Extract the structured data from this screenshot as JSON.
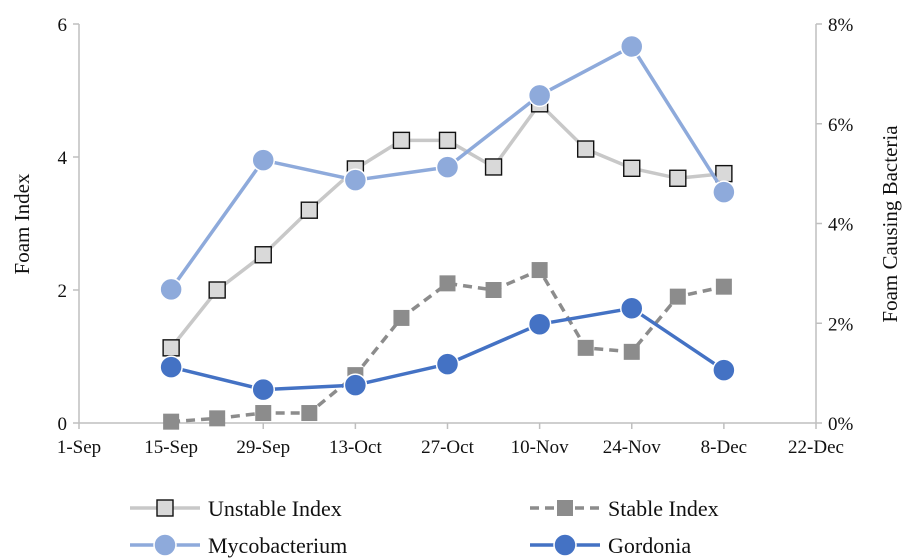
{
  "chart_data": {
    "type": "line",
    "title": "",
    "xlabel": "",
    "ylabel_left": "Foam Index",
    "ylabel_right": "Foam Causing Bacteria",
    "x_ticks": [
      "1-Sep",
      "15-Sep",
      "29-Sep",
      "13-Oct",
      "27-Oct",
      "10-Nov",
      "24-Nov",
      "8-Dec",
      "22-Dec"
    ],
    "x_tick_days": [
      0,
      14,
      28,
      42,
      56,
      70,
      84,
      98,
      112
    ],
    "ylim_left": [
      0,
      6
    ],
    "y_ticks_left": [
      "0",
      "2",
      "4",
      "6"
    ],
    "ylim_right": [
      0,
      0.08
    ],
    "y_ticks_right": [
      "0%",
      "2%",
      "4%",
      "6%",
      "8%"
    ],
    "grid": false,
    "legend_position": "bottom",
    "series": [
      {
        "name": "Unstable Index",
        "axis": "left",
        "color": "#c8c8c8",
        "marker": "square-open",
        "line": "solid",
        "x": [
          14,
          21,
          28,
          35,
          42,
          49,
          56,
          63,
          70,
          77,
          84,
          91,
          98
        ],
        "values": [
          1.13,
          2.0,
          2.53,
          3.2,
          3.82,
          4.25,
          4.25,
          3.85,
          4.8,
          4.12,
          3.83,
          3.68,
          3.75
        ]
      },
      {
        "name": "Stable Index",
        "axis": "left",
        "color": "#8c8c8c",
        "marker": "square-filled",
        "line": "dashed",
        "x": [
          14,
          21,
          28,
          35,
          42,
          49,
          56,
          63,
          70,
          77,
          84,
          91,
          98
        ],
        "values": [
          0.02,
          0.07,
          0.15,
          0.15,
          0.72,
          1.58,
          2.1,
          2.0,
          2.3,
          1.13,
          1.07,
          1.9,
          2.05
        ]
      },
      {
        "name": "Mycobacterium",
        "axis": "right",
        "color": "#8eaadb",
        "marker": "circle",
        "line": "solid",
        "x": [
          14,
          28,
          42,
          56,
          70,
          84,
          98
        ],
        "values": [
          0.0268,
          0.0527,
          0.0487,
          0.0513,
          0.0657,
          0.0755,
          0.0463
        ]
      },
      {
        "name": "Gordonia",
        "axis": "right",
        "color": "#4472c4",
        "marker": "circle",
        "line": "solid",
        "x": [
          14,
          28,
          42,
          56,
          70,
          84,
          98
        ],
        "values": [
          0.0112,
          0.0067,
          0.0076,
          0.0118,
          0.0198,
          0.023,
          0.0106
        ]
      }
    ]
  }
}
